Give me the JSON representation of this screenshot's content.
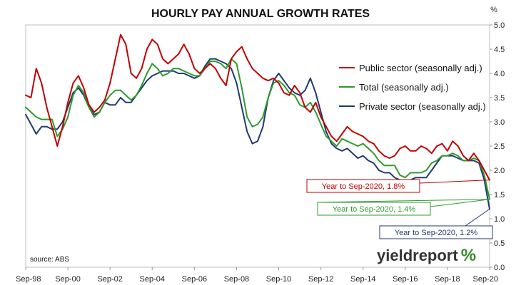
{
  "chart_data": {
    "type": "line",
    "title": "HOURLY PAY ANNUAL GROWTH RATES",
    "ylabel": "%",
    "ylim": [
      0,
      5
    ],
    "yticks": [
      "0.0",
      "0.5",
      "1.0",
      "1.5",
      "2.0",
      "2.5",
      "3.0",
      "3.5",
      "4.0",
      "4.5",
      "5.0"
    ],
    "xlim": [
      "1998-09",
      "2020-09"
    ],
    "xticks": [
      "Sep-98",
      "Sep-00",
      "Sep-02",
      "Sep-04",
      "Sep-06",
      "Sep-08",
      "Sep-10",
      "Sep-12",
      "Sep-14",
      "Sep-16",
      "Sep-18",
      "Sep-20"
    ],
    "grid": false,
    "legend_position": "top-right",
    "series": [
      {
        "name": "Public sector (seasonally adj.)",
        "color": "#c00000",
        "points": [
          [
            "1998-09",
            3.55
          ],
          [
            "1998-12",
            3.5
          ],
          [
            "1999-03",
            4.1
          ],
          [
            "1999-06",
            3.8
          ],
          [
            "1999-09",
            3.3
          ],
          [
            "1999-12",
            2.9
          ],
          [
            "2000-03",
            2.5
          ],
          [
            "2000-06",
            2.9
          ],
          [
            "2000-09",
            3.4
          ],
          [
            "2000-12",
            3.8
          ],
          [
            "2001-03",
            3.95
          ],
          [
            "2001-06",
            3.7
          ],
          [
            "2001-09",
            3.35
          ],
          [
            "2001-12",
            3.2
          ],
          [
            "2002-03",
            3.3
          ],
          [
            "2002-06",
            3.45
          ],
          [
            "2002-09",
            3.8
          ],
          [
            "2002-12",
            4.3
          ],
          [
            "2003-03",
            4.8
          ],
          [
            "2003-06",
            4.6
          ],
          [
            "2003-09",
            4.0
          ],
          [
            "2003-12",
            3.9
          ],
          [
            "2004-03",
            4.1
          ],
          [
            "2004-06",
            4.5
          ],
          [
            "2004-09",
            4.7
          ],
          [
            "2004-12",
            4.6
          ],
          [
            "2005-03",
            4.3
          ],
          [
            "2005-06",
            4.2
          ],
          [
            "2005-09",
            4.3
          ],
          [
            "2005-12",
            4.4
          ],
          [
            "2006-03",
            4.6
          ],
          [
            "2006-06",
            4.4
          ],
          [
            "2006-09",
            4.1
          ],
          [
            "2006-12",
            4.0
          ],
          [
            "2007-03",
            4.1
          ],
          [
            "2007-06",
            4.2
          ],
          [
            "2007-09",
            4.1
          ],
          [
            "2007-12",
            3.9
          ],
          [
            "2008-03",
            3.75
          ],
          [
            "2008-06",
            4.3
          ],
          [
            "2008-09",
            4.45
          ],
          [
            "2008-12",
            4.55
          ],
          [
            "2009-03",
            4.3
          ],
          [
            "2009-06",
            4.1
          ],
          [
            "2009-09",
            4.0
          ],
          [
            "2009-12",
            3.9
          ],
          [
            "2010-03",
            3.85
          ],
          [
            "2010-06",
            3.9
          ],
          [
            "2010-09",
            3.8
          ],
          [
            "2010-12",
            3.6
          ],
          [
            "2011-03",
            3.55
          ],
          [
            "2011-06",
            3.75
          ],
          [
            "2011-09",
            3.6
          ],
          [
            "2011-12",
            3.3
          ],
          [
            "2012-03",
            3.2
          ],
          [
            "2012-06",
            3.4
          ],
          [
            "2012-09",
            3.1
          ],
          [
            "2012-12",
            2.9
          ],
          [
            "2013-03",
            2.7
          ],
          [
            "2013-06",
            2.6
          ],
          [
            "2013-09",
            2.75
          ],
          [
            "2013-12",
            2.9
          ],
          [
            "2014-03",
            2.8
          ],
          [
            "2014-06",
            2.75
          ],
          [
            "2014-09",
            2.7
          ],
          [
            "2014-12",
            2.6
          ],
          [
            "2015-03",
            2.55
          ],
          [
            "2015-06",
            2.4
          ],
          [
            "2015-09",
            2.3
          ],
          [
            "2015-12",
            2.25
          ],
          [
            "2016-03",
            2.3
          ],
          [
            "2016-06",
            2.45
          ],
          [
            "2016-09",
            2.5
          ],
          [
            "2016-12",
            2.4
          ],
          [
            "2017-03",
            2.4
          ],
          [
            "2017-06",
            2.5
          ],
          [
            "2017-09",
            2.45
          ],
          [
            "2017-12",
            2.35
          ],
          [
            "2018-03",
            2.5
          ],
          [
            "2018-06",
            2.55
          ],
          [
            "2018-09",
            2.4
          ],
          [
            "2018-12",
            2.6
          ],
          [
            "2019-03",
            2.5
          ],
          [
            "2019-06",
            2.3
          ],
          [
            "2019-09",
            2.2
          ],
          [
            "2019-12",
            2.35
          ],
          [
            "2020-03",
            2.2
          ],
          [
            "2020-06",
            2.0
          ],
          [
            "2020-09",
            1.8
          ]
        ]
      },
      {
        "name": "Total (seasonally adj.)",
        "color": "#2e9a2e",
        "points": [
          [
            "1998-09",
            3.3
          ],
          [
            "1998-12",
            3.2
          ],
          [
            "1999-03",
            3.1
          ],
          [
            "1999-06",
            3.05
          ],
          [
            "1999-09",
            3.05
          ],
          [
            "1999-12",
            3.05
          ],
          [
            "2000-03",
            2.7
          ],
          [
            "2000-06",
            2.85
          ],
          [
            "2000-09",
            3.1
          ],
          [
            "2000-12",
            3.55
          ],
          [
            "2001-03",
            3.75
          ],
          [
            "2001-06",
            3.6
          ],
          [
            "2001-09",
            3.3
          ],
          [
            "2001-12",
            3.1
          ],
          [
            "2002-03",
            3.2
          ],
          [
            "2002-06",
            3.4
          ],
          [
            "2002-09",
            3.55
          ],
          [
            "2002-12",
            3.65
          ],
          [
            "2003-03",
            3.65
          ],
          [
            "2003-06",
            3.55
          ],
          [
            "2003-09",
            3.45
          ],
          [
            "2003-12",
            3.55
          ],
          [
            "2004-03",
            3.75
          ],
          [
            "2004-06",
            4.0
          ],
          [
            "2004-09",
            4.2
          ],
          [
            "2004-12",
            4.1
          ],
          [
            "2005-03",
            3.95
          ],
          [
            "2005-06",
            4.0
          ],
          [
            "2005-09",
            4.1
          ],
          [
            "2005-12",
            4.1
          ],
          [
            "2006-03",
            4.05
          ],
          [
            "2006-06",
            4.0
          ],
          [
            "2006-09",
            3.95
          ],
          [
            "2006-12",
            3.95
          ],
          [
            "2007-03",
            4.1
          ],
          [
            "2007-06",
            4.25
          ],
          [
            "2007-09",
            4.25
          ],
          [
            "2007-12",
            4.2
          ],
          [
            "2008-03",
            4.1
          ],
          [
            "2008-06",
            4.3
          ],
          [
            "2008-09",
            4.2
          ],
          [
            "2008-12",
            3.7
          ],
          [
            "2009-03",
            3.1
          ],
          [
            "2009-06",
            2.9
          ],
          [
            "2009-09",
            2.95
          ],
          [
            "2009-12",
            3.1
          ],
          [
            "2010-03",
            3.5
          ],
          [
            "2010-06",
            3.8
          ],
          [
            "2010-09",
            3.85
          ],
          [
            "2010-12",
            3.75
          ],
          [
            "2011-03",
            3.6
          ],
          [
            "2011-06",
            3.55
          ],
          [
            "2011-09",
            3.35
          ],
          [
            "2011-12",
            3.3
          ],
          [
            "2012-03",
            3.4
          ],
          [
            "2012-06",
            3.2
          ],
          [
            "2012-09",
            2.95
          ],
          [
            "2012-12",
            2.7
          ],
          [
            "2013-03",
            2.6
          ],
          [
            "2013-06",
            2.5
          ],
          [
            "2013-09",
            2.65
          ],
          [
            "2013-12",
            2.6
          ],
          [
            "2014-03",
            2.55
          ],
          [
            "2014-06",
            2.5
          ],
          [
            "2014-09",
            2.55
          ],
          [
            "2014-12",
            2.45
          ],
          [
            "2015-03",
            2.35
          ],
          [
            "2015-06",
            2.2
          ],
          [
            "2015-09",
            2.1
          ],
          [
            "2015-12",
            2.1
          ],
          [
            "2016-03",
            2.1
          ],
          [
            "2016-06",
            1.9
          ],
          [
            "2016-09",
            1.85
          ],
          [
            "2016-12",
            1.95
          ],
          [
            "2017-03",
            1.95
          ],
          [
            "2017-06",
            1.95
          ],
          [
            "2017-09",
            2.0
          ],
          [
            "2017-12",
            2.15
          ],
          [
            "2018-03",
            2.2
          ],
          [
            "2018-06",
            2.3
          ],
          [
            "2018-09",
            2.3
          ],
          [
            "2018-12",
            2.35
          ],
          [
            "2019-03",
            2.3
          ],
          [
            "2019-06",
            2.2
          ],
          [
            "2019-09",
            2.2
          ],
          [
            "2019-12",
            2.25
          ],
          [
            "2020-03",
            2.2
          ],
          [
            "2020-06",
            1.9
          ],
          [
            "2020-09",
            1.4
          ]
        ]
      },
      {
        "name": "Private sector (seasonally adj.)",
        "color": "#1f3a6e",
        "points": [
          [
            "1998-09",
            3.15
          ],
          [
            "1998-12",
            2.95
          ],
          [
            "1999-03",
            2.75
          ],
          [
            "1999-06",
            2.9
          ],
          [
            "1999-09",
            2.9
          ],
          [
            "1999-12",
            2.85
          ],
          [
            "2000-03",
            2.85
          ],
          [
            "2000-06",
            3.0
          ],
          [
            "2000-09",
            3.3
          ],
          [
            "2000-12",
            3.6
          ],
          [
            "2001-03",
            3.7
          ],
          [
            "2001-06",
            3.55
          ],
          [
            "2001-09",
            3.3
          ],
          [
            "2001-12",
            3.15
          ],
          [
            "2002-03",
            3.2
          ],
          [
            "2002-06",
            3.4
          ],
          [
            "2002-09",
            3.35
          ],
          [
            "2002-12",
            3.35
          ],
          [
            "2003-03",
            3.5
          ],
          [
            "2003-06",
            3.4
          ],
          [
            "2003-09",
            3.4
          ],
          [
            "2003-12",
            3.55
          ],
          [
            "2004-03",
            3.7
          ],
          [
            "2004-06",
            3.85
          ],
          [
            "2004-09",
            3.95
          ],
          [
            "2004-12",
            4.0
          ],
          [
            "2005-03",
            4.05
          ],
          [
            "2005-06",
            4.05
          ],
          [
            "2005-09",
            4.05
          ],
          [
            "2005-12",
            4.0
          ],
          [
            "2006-03",
            4.0
          ],
          [
            "2006-06",
            3.95
          ],
          [
            "2006-09",
            3.9
          ],
          [
            "2006-12",
            3.95
          ],
          [
            "2007-03",
            4.15
          ],
          [
            "2007-06",
            4.3
          ],
          [
            "2007-09",
            4.3
          ],
          [
            "2007-12",
            4.25
          ],
          [
            "2008-03",
            4.2
          ],
          [
            "2008-06",
            4.1
          ],
          [
            "2008-09",
            3.8
          ],
          [
            "2008-12",
            3.3
          ],
          [
            "2009-03",
            2.8
          ],
          [
            "2009-06",
            2.55
          ],
          [
            "2009-09",
            2.6
          ],
          [
            "2009-12",
            2.9
          ],
          [
            "2010-03",
            3.5
          ],
          [
            "2010-06",
            3.85
          ],
          [
            "2010-09",
            4.0
          ],
          [
            "2010-12",
            3.85
          ],
          [
            "2011-03",
            3.7
          ],
          [
            "2011-06",
            3.6
          ],
          [
            "2011-09",
            3.55
          ],
          [
            "2011-12",
            3.65
          ],
          [
            "2012-03",
            3.9
          ],
          [
            "2012-06",
            3.6
          ],
          [
            "2012-09",
            3.2
          ],
          [
            "2012-12",
            2.8
          ],
          [
            "2013-03",
            2.55
          ],
          [
            "2013-06",
            2.45
          ],
          [
            "2013-09",
            2.4
          ],
          [
            "2013-12",
            2.45
          ],
          [
            "2014-03",
            2.35
          ],
          [
            "2014-06",
            2.25
          ],
          [
            "2014-09",
            2.3
          ],
          [
            "2014-12",
            2.2
          ],
          [
            "2015-03",
            2.15
          ],
          [
            "2015-06",
            2.0
          ],
          [
            "2015-09",
            1.95
          ],
          [
            "2015-12",
            1.95
          ],
          [
            "2016-03",
            1.85
          ],
          [
            "2016-06",
            1.8
          ],
          [
            "2016-09",
            1.8
          ],
          [
            "2016-12",
            1.8
          ],
          [
            "2017-03",
            1.85
          ],
          [
            "2017-06",
            1.85
          ],
          [
            "2017-09",
            1.85
          ],
          [
            "2017-12",
            2.0
          ],
          [
            "2018-03",
            2.15
          ],
          [
            "2018-06",
            2.3
          ],
          [
            "2018-09",
            2.3
          ],
          [
            "2018-12",
            2.3
          ],
          [
            "2019-03",
            2.25
          ],
          [
            "2019-06",
            2.2
          ],
          [
            "2019-09",
            2.2
          ],
          [
            "2019-12",
            2.2
          ],
          [
            "2020-03",
            2.15
          ],
          [
            "2020-06",
            1.8
          ],
          [
            "2020-09",
            1.2
          ]
        ]
      }
    ],
    "annotations": [
      {
        "text": "Year to Sep-2020, 1.8%",
        "series": 0,
        "color": "#c00000"
      },
      {
        "text": "Year to Sep-2020, 1.4%",
        "series": 1,
        "color": "#2e9a2e"
      },
      {
        "text": "Year to Sep-2020, 1.2%",
        "series": 2,
        "color": "#1f3a6e"
      }
    ],
    "source": "source: ABS"
  },
  "branding": {
    "name": "yieldreport",
    "mark": "%"
  }
}
